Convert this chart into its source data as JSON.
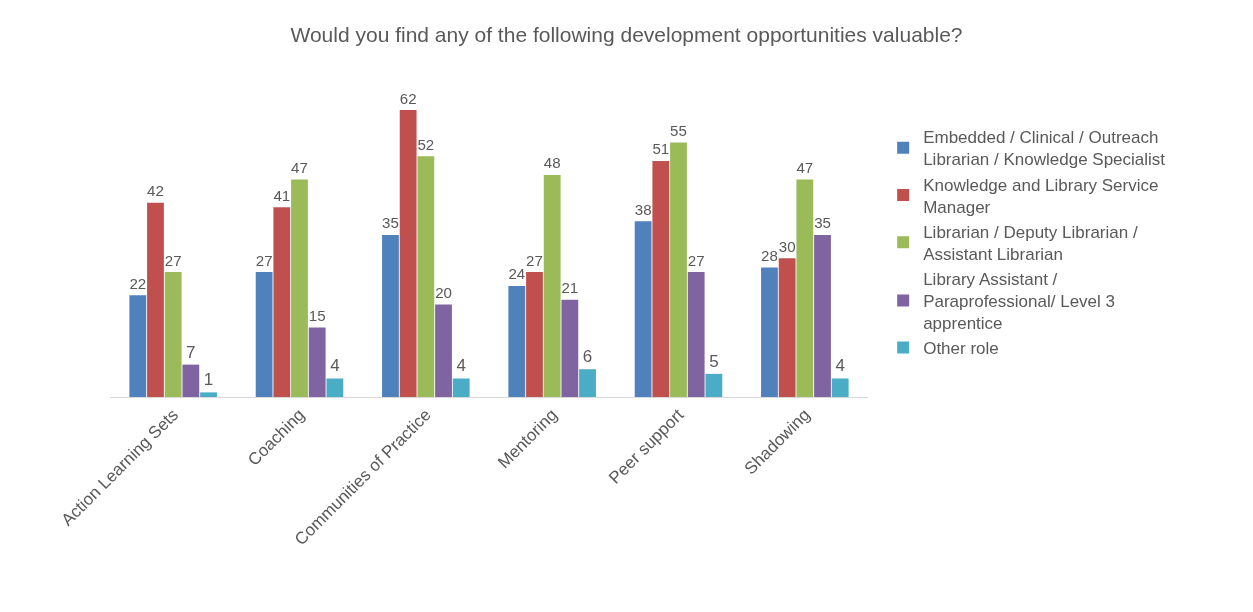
{
  "chart_data": {
    "type": "bar",
    "title": "Would you find any of the following development opportunities valuable?",
    "categories": [
      "Action Learning Sets",
      "Coaching",
      "Communities of Practice",
      "Mentoring",
      "Peer support",
      "Shadowing"
    ],
    "series": [
      {
        "name": "Embedded / Clinical / Outreach Librarian / Knowledge Specialist",
        "color": "#4f81bd",
        "values": [
          22,
          27,
          35,
          24,
          38,
          28
        ]
      },
      {
        "name": "Knowledge and Library Service Manager",
        "color": "#c0504d",
        "values": [
          42,
          41,
          62,
          27,
          51,
          30
        ]
      },
      {
        "name": "Librarian / Deputy Librarian / Assistant Librarian",
        "color": "#9bbb59",
        "values": [
          27,
          47,
          52,
          48,
          55,
          47
        ]
      },
      {
        "name": "Library Assistant / Paraprofessional/ Level 3 apprentice",
        "color": "#8064a2",
        "values": [
          7,
          15,
          20,
          21,
          27,
          35
        ]
      },
      {
        "name": "Other role",
        "color": "#4bacc6",
        "values": [
          1,
          4,
          4,
          6,
          5,
          4
        ]
      }
    ],
    "data_labels": true,
    "legend": "right"
  }
}
